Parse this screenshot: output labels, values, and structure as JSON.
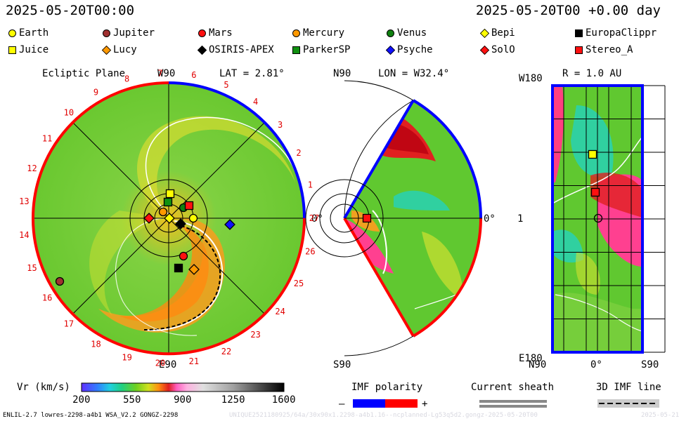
{
  "header": {
    "left_time": "2025-05-20T00:00",
    "right_time": "2025-05-20T00 +0.00 day"
  },
  "legend": [
    {
      "name": "Earth",
      "shape": "circle",
      "color": "#ffff00"
    },
    {
      "name": "Jupiter",
      "shape": "circle",
      "color": "#a03030"
    },
    {
      "name": "Mars",
      "shape": "circle",
      "color": "#ff1010"
    },
    {
      "name": "Mercury",
      "shape": "circle",
      "color": "#ff9900"
    },
    {
      "name": "Venus",
      "shape": "circle",
      "color": "#108010"
    },
    {
      "name": "Bepi",
      "shape": "diamond",
      "color": "#ffff00"
    },
    {
      "name": "EuropaClippr",
      "shape": "square",
      "color": "#000000"
    },
    {
      "name": "Juice",
      "shape": "square",
      "color": "#ffff00"
    },
    {
      "name": "Lucy",
      "shape": "diamond",
      "color": "#ff9900"
    },
    {
      "name": "OSIRIS-APEX",
      "shape": "diamond",
      "color": "#000000"
    },
    {
      "name": "ParkerSP",
      "shape": "square",
      "color": "#109010"
    },
    {
      "name": "Psyche",
      "shape": "diamond",
      "color": "#1010ff"
    },
    {
      "name": "SolO",
      "shape": "diamond",
      "color": "#ff1010"
    },
    {
      "name": "Stereo_A",
      "shape": "square",
      "color": "#ff1010"
    }
  ],
  "ecliptic": {
    "title": "Ecliptic Plane",
    "top_label": "W90",
    "lat_label": "LAT = 2.81°",
    "bottom_label": "E90",
    "right_label": "0°",
    "sector_numbers": [
      "1",
      "2",
      "3",
      "4",
      "5",
      "6",
      "7",
      "8",
      "9",
      "10",
      "11",
      "12",
      "13",
      "14",
      "15",
      "16",
      "17",
      "18",
      "19",
      "20",
      "21",
      "22",
      "23",
      "24",
      "25",
      "26",
      "27"
    ]
  },
  "meridional": {
    "top_label": "N90",
    "lon_label": "LON = W32.4°",
    "bottom_label": "S90",
    "right_label": "0°"
  },
  "earth_view": {
    "r_label": "R = 1.0 AU",
    "top_left": "W180",
    "mid_left": "1",
    "bottom_left": "E180",
    "x_left": "N90",
    "x_mid": "0°",
    "x_right": "S90"
  },
  "colorbar": {
    "label": "Vr (km/s)",
    "ticks": [
      "200",
      "550",
      "900",
      "1250",
      "1600"
    ],
    "range": [
      200,
      1600
    ]
  },
  "imf": {
    "title": "IMF polarity",
    "minus": "–",
    "plus": "+",
    "minus_color": "#0000ff",
    "plus_color": "#ff0000"
  },
  "sheath": {
    "title": "Current sheath"
  },
  "imf3d": {
    "title": "3D IMF line"
  },
  "footer": {
    "model": "ENLIL-2.7 lowres-2298-a4b1 WSA_V2.2 GONGZ-2298",
    "watermark": "UNIQUE2521180925/64a/30x90x1.2298-a4b1.16--ncplanned-Lg53q5d2.gongz-2025-05-20T00",
    "date_tail": "2025-05-21"
  }
}
